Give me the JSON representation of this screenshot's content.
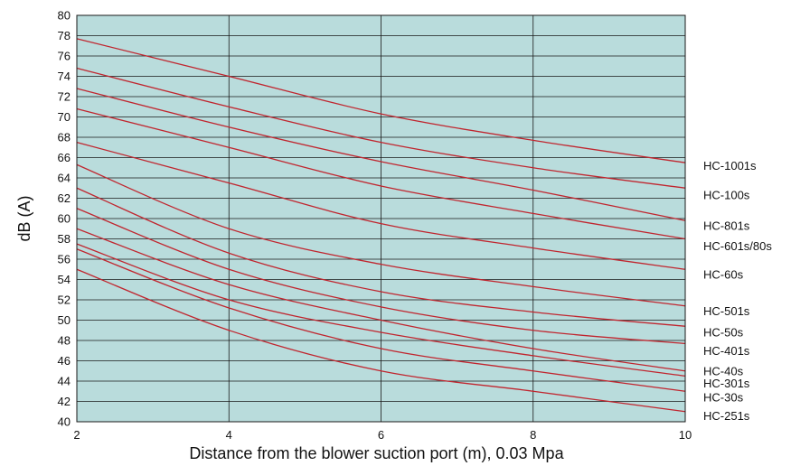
{
  "chart_data": {
    "type": "line",
    "title": "",
    "xlabel": "Distance from the blower suction port (m), 0.03 Mpa",
    "ylabel": "dB (A)",
    "xlim": [
      2,
      10
    ],
    "ylim": [
      40,
      80
    ],
    "x_ticks": [
      "2",
      "4",
      "6",
      "8",
      "10"
    ],
    "y_ticks": [
      "40",
      "42",
      "44",
      "46",
      "48",
      "50",
      "52",
      "54",
      "56",
      "58",
      "60",
      "62",
      "64",
      "66",
      "68",
      "70",
      "72",
      "74",
      "76",
      "78",
      "80"
    ],
    "grid": true,
    "legend": "right, at line ends",
    "colors": {
      "plot_background": "#b9dcdc",
      "line": "#c0262f",
      "grid": "#1a1a1a"
    },
    "x": [
      2,
      4,
      6,
      8,
      10
    ],
    "series": [
      {
        "name": "HC-1001s",
        "values": [
          77.7,
          74.0,
          70.3,
          67.7,
          65.5
        ],
        "label_y": 65.2
      },
      {
        "name": "HC-100s",
        "values": [
          74.8,
          71.0,
          67.5,
          65.0,
          63.0
        ],
        "label_y": 62.3
      },
      {
        "name": "HC-801s",
        "values": [
          72.8,
          69.0,
          65.6,
          62.8,
          59.8
        ],
        "label_y": 59.3
      },
      {
        "name": "HC-601s/80s",
        "values": [
          70.8,
          67.0,
          63.2,
          60.5,
          58.0
        ],
        "label_y": 57.3
      },
      {
        "name": "HC-60s",
        "values": [
          67.5,
          63.5,
          59.5,
          57.1,
          55.0
        ],
        "label_y": 54.5
      },
      {
        "name": "HC-501s",
        "values": [
          65.3,
          59.0,
          55.5,
          53.3,
          51.4
        ],
        "label_y": 50.9
      },
      {
        "name": "HC-50s",
        "values": [
          63.0,
          56.6,
          52.8,
          50.8,
          49.4
        ],
        "label_y": 48.8
      },
      {
        "name": "HC-401s",
        "values": [
          61.0,
          55.0,
          51.3,
          49.0,
          47.7
        ],
        "label_y": 47.0
      },
      {
        "name": "HC-40s",
        "values": [
          59.0,
          53.5,
          50.0,
          47.2,
          45.0
        ],
        "label_y": 45.0
      },
      {
        "name": "HC-301s",
        "values": [
          57.5,
          52.0,
          48.8,
          46.5,
          44.5
        ],
        "label_y": 43.8
      },
      {
        "name": "HC-30s",
        "values": [
          57.0,
          51.2,
          47.2,
          45.0,
          43.0
        ],
        "label_y": 42.4
      },
      {
        "name": "HC-251s",
        "values": [
          55.0,
          49.0,
          45.0,
          43.0,
          41.0
        ],
        "label_y": 40.6
      }
    ]
  }
}
